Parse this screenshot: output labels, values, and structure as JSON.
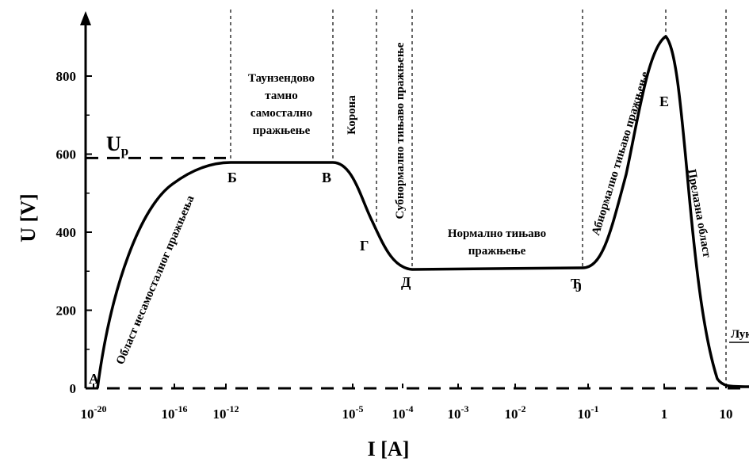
{
  "chart_data": {
    "type": "line",
    "title": "",
    "xlabel": "I [A]",
    "ylabel": "U [V]",
    "xscale": "log",
    "x_ticks": [
      "10-20",
      "10-16",
      "10-12",
      "10-5",
      "10-4",
      "10-3",
      "10-2",
      "10-1",
      "1",
      "10"
    ],
    "x_tick_bases": [
      "10",
      "10",
      "10",
      "10",
      "10",
      "10",
      "10",
      "10",
      "1",
      "10"
    ],
    "x_tick_exps": [
      "-20",
      "-16",
      "-12",
      "-5",
      "-4",
      "-3",
      "-2",
      "-1",
      "",
      ""
    ],
    "y_ticks": [
      "0",
      "200",
      "400",
      "600",
      "800"
    ],
    "ylim": [
      0,
      900
    ],
    "grid": false,
    "breakdown_voltage": {
      "label": "U",
      "subscript": "p",
      "value": 590
    },
    "series": [
      {
        "x": [
          "10^-20",
          "10^-16",
          "10^-12",
          "10^-5",
          "10^-4",
          "10^-1",
          "1",
          "10"
        ],
        "y": [
          0,
          430,
          590,
          590,
          320,
          320,
          900,
          30
        ]
      }
    ],
    "points": [
      {
        "label": "А",
        "x": "10^-20",
        "y": 0
      },
      {
        "label": "Б",
        "x": "10^-12",
        "y": 590
      },
      {
        "label": "В",
        "x": "10^-5",
        "y": 590
      },
      {
        "label": "Г",
        "x": "~3·10^-5",
        "y": 400
      },
      {
        "label": "Д",
        "x": "10^-4",
        "y": 320
      },
      {
        "label": "Ђ",
        "x": "10^-1",
        "y": 320
      },
      {
        "label": "Е",
        "x": "1",
        "y": 900
      }
    ],
    "regions": {
      "nonself": "Област несамосталног пражњења",
      "townsend": [
        "Таунзендово",
        "тамно",
        "самостално",
        "пражњење"
      ],
      "corona": "Корона",
      "subnormal": "Субнормално тињаво пражњење",
      "normal": [
        "Нормално тињаво",
        "пражњење"
      ],
      "abnormal": "Абнормално тињаво пражњење",
      "transition": "Прелазна област",
      "arc": "Лук"
    }
  }
}
